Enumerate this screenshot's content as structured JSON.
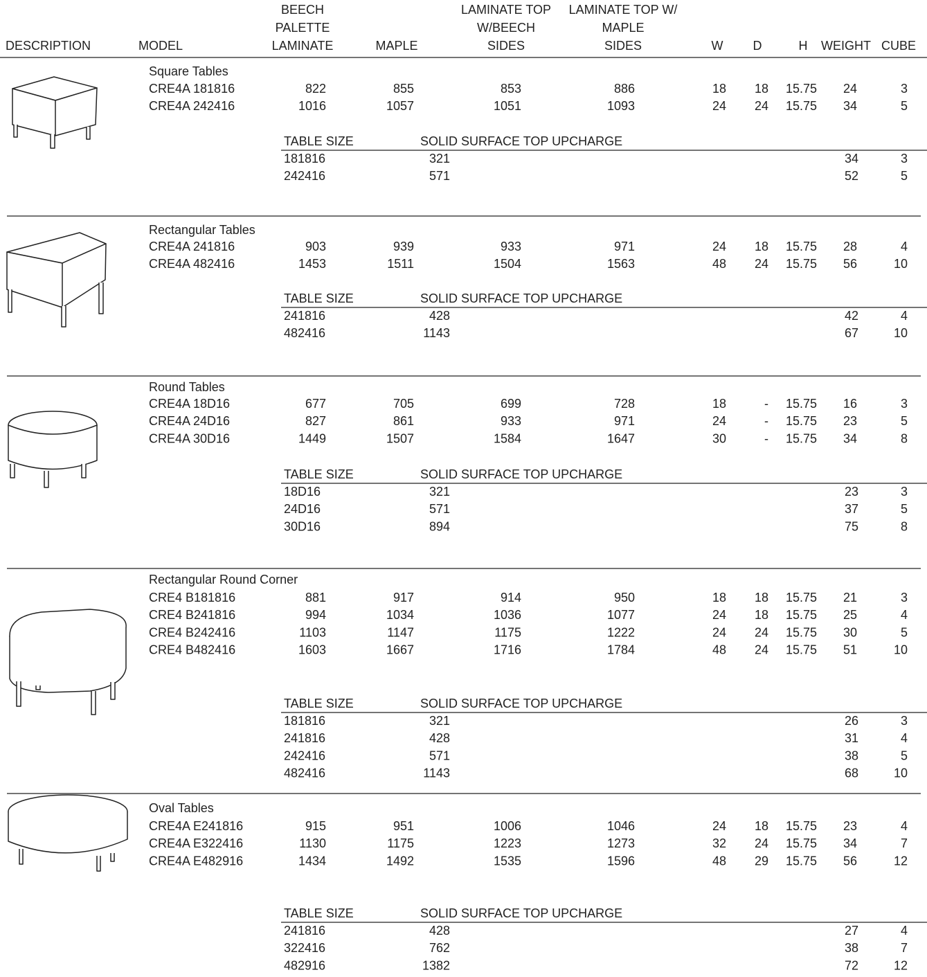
{
  "header": {
    "columns": [
      [
        "DESCRIPTION"
      ],
      [
        "MODEL"
      ],
      [
        "BEECH",
        "PALETTE",
        "LAMINATE"
      ],
      [
        "MAPLE"
      ],
      [
        "LAMINATE TOP",
        "W/BEECH",
        "SIDES"
      ],
      [
        "LAMINATE TOP W/",
        "MAPLE",
        "SIDES"
      ],
      [
        "W"
      ],
      [
        "D"
      ],
      [
        "H"
      ],
      [
        "WEIGHT"
      ],
      [
        "CUBE"
      ]
    ]
  },
  "sections": [
    {
      "title": "Square Tables",
      "rows": [
        [
          "CRE4A 181816",
          "822",
          "855",
          "853",
          "886",
          "18",
          "18",
          "15.75",
          "24",
          "3"
        ],
        [
          "CRE4A 242416",
          "1016",
          "1057",
          "1051",
          "1093",
          "24",
          "24",
          "15.75",
          "34",
          "5"
        ]
      ],
      "upcharge": {
        "columns": [
          "TABLE SIZE",
          "SOLID SURFACE TOP UPCHARGE"
        ],
        "rows": [
          [
            "181816",
            "321",
            "34",
            "3"
          ],
          [
            "242416",
            "571",
            "52",
            "5"
          ]
        ]
      }
    },
    {
      "title": "Rectangular Tables",
      "rows": [
        [
          "CRE4A 241816",
          "903",
          "939",
          "933",
          "971",
          "24",
          "18",
          "15.75",
          "28",
          "4"
        ],
        [
          "CRE4A 482416",
          "1453",
          "1511",
          "1504",
          "1563",
          "48",
          "24",
          "15.75",
          "56",
          "10"
        ]
      ],
      "upcharge": {
        "columns": [
          "TABLE SIZE",
          "SOLID SURFACE TOP UPCHARGE"
        ],
        "rows": [
          [
            "241816",
            "428",
            "42",
            "4"
          ],
          [
            "482416",
            "1143",
            "67",
            "10"
          ]
        ]
      }
    },
    {
      "title": "Round Tables",
      "rows": [
        [
          "CRE4A 18D16",
          "677",
          "705",
          "699",
          "728",
          "18",
          "-",
          "15.75",
          "16",
          "3"
        ],
        [
          "CRE4A 24D16",
          "827",
          "861",
          "933",
          "971",
          "24",
          "-",
          "15.75",
          "23",
          "5"
        ],
        [
          "CRE4A 30D16",
          "1449",
          "1507",
          "1584",
          "1647",
          "30",
          "-",
          "15.75",
          "34",
          "8"
        ]
      ],
      "upcharge": {
        "columns": [
          "TABLE SIZE",
          "SOLID SURFACE TOP UPCHARGE"
        ],
        "rows": [
          [
            "18D16",
            "321",
            "23",
            "3"
          ],
          [
            "24D16",
            "571",
            "37",
            "5"
          ],
          [
            "30D16",
            "894",
            "75",
            "8"
          ]
        ]
      }
    },
    {
      "title": "Rectangular Round Corner",
      "rows": [
        [
          "CRE4 B181816",
          "881",
          "917",
          "914",
          "950",
          "18",
          "18",
          "15.75",
          "21",
          "3"
        ],
        [
          "CRE4 B241816",
          "994",
          "1034",
          "1036",
          "1077",
          "24",
          "18",
          "15.75",
          "25",
          "4"
        ],
        [
          "CRE4 B242416",
          "1103",
          "1147",
          "1175",
          "1222",
          "24",
          "24",
          "15.75",
          "30",
          "5"
        ],
        [
          "CRE4 B482416",
          "1603",
          "1667",
          "1716",
          "1784",
          "48",
          "24",
          "15.75",
          "51",
          "10"
        ]
      ],
      "upcharge": {
        "columns": [
          "TABLE SIZE",
          "SOLID SURFACE TOP UPCHARGE"
        ],
        "rows": [
          [
            "181816",
            "321",
            "26",
            "3"
          ],
          [
            "241816",
            "428",
            "31",
            "4"
          ],
          [
            "242416",
            "571",
            "38",
            "5"
          ],
          [
            "482416",
            "1143",
            "68",
            "10"
          ]
        ]
      }
    },
    {
      "title": "Oval Tables",
      "rows": [
        [
          "CRE4A E241816",
          "915",
          "951",
          "1006",
          "1046",
          "24",
          "18",
          "15.75",
          "23",
          "4"
        ],
        [
          "CRE4A E322416",
          "1130",
          "1175",
          "1223",
          "1273",
          "32",
          "24",
          "15.75",
          "34",
          "7"
        ],
        [
          "CRE4A E482916",
          "1434",
          "1492",
          "1535",
          "1596",
          "48",
          "29",
          "15.75",
          "56",
          "12"
        ]
      ],
      "upcharge": {
        "columns": [
          "TABLE SIZE",
          "SOLID SURFACE TOP UPCHARGE"
        ],
        "rows": [
          [
            "241816",
            "428",
            "27",
            "4"
          ],
          [
            "322416",
            "762",
            "38",
            "7"
          ],
          [
            "482916",
            "1382",
            "72",
            "12"
          ]
        ]
      }
    }
  ]
}
